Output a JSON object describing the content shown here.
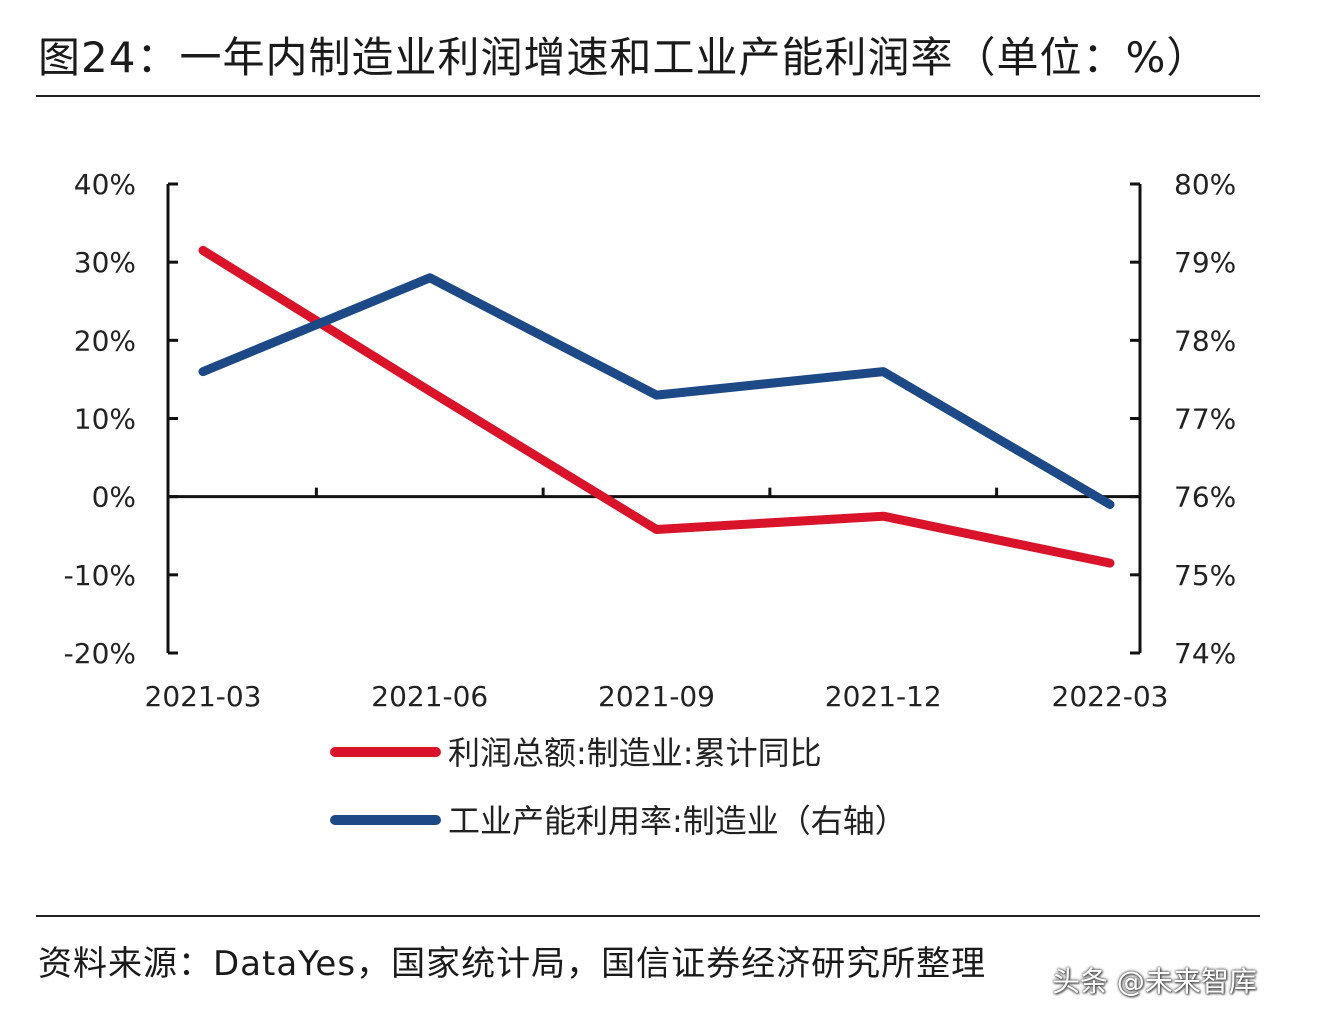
{
  "header": {
    "title": "图24：一年内制造业利润增速和工业产能利润率（单位：%）"
  },
  "footer": {
    "source": "资料来源：DataYes，国家统计局，国信证券经济研究所整理",
    "watermark": "头条 @未来智库"
  },
  "colors": {
    "series_red": "#d9132a",
    "series_blue": "#1d4a86",
    "axis": "#111111"
  },
  "chart_data": {
    "type": "line",
    "title": "",
    "categories": [
      "2021-03",
      "2021-06",
      "2021-09",
      "2021-12",
      "2022-03"
    ],
    "left_axis": {
      "ylim": [
        -20,
        40
      ],
      "ticks": [
        40,
        30,
        20,
        10,
        0,
        -10,
        -20
      ],
      "tick_labels": [
        "40%",
        "30%",
        "20%",
        "10%",
        "0%",
        "-10%",
        "-20%"
      ]
    },
    "right_axis": {
      "ylim": [
        74,
        80
      ],
      "ticks": [
        80,
        79,
        78,
        77,
        76,
        75,
        74
      ],
      "tick_labels": [
        "80%",
        "79%",
        "78%",
        "77%",
        "76%",
        "75%",
        "74%"
      ]
    },
    "series": [
      {
        "name": "利润总额:制造业:累计同比",
        "axis": "left",
        "color_key": "series_red",
        "values": [
          31.5,
          13.5,
          -4.2,
          -2.5,
          -8.5
        ]
      },
      {
        "name": "工业产能利用率:制造业（右轴）",
        "axis": "right",
        "color_key": "series_blue",
        "values": [
          77.6,
          78.8,
          77.3,
          77.6,
          75.9
        ]
      }
    ],
    "legend": "bottom"
  }
}
